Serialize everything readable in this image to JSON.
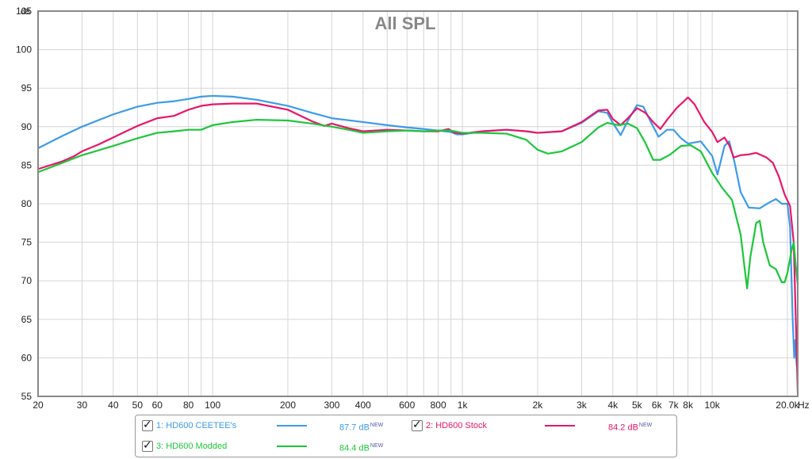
{
  "chart_data": {
    "type": "line",
    "title": "All SPL",
    "y_unit": "dB",
    "x_unit": "Hz",
    "x_scale": "log",
    "xlim": [
      20,
      22000
    ],
    "ylim": [
      55,
      105
    ],
    "grid": true,
    "y_ticks": [
      "55",
      "60",
      "65",
      "70",
      "75",
      "80",
      "85",
      "90",
      "95",
      "100",
      "105"
    ],
    "x_ticks": [
      {
        "v": 20,
        "label": "20"
      },
      {
        "v": 30,
        "label": "30"
      },
      {
        "v": 40,
        "label": "40"
      },
      {
        "v": 50,
        "label": "50"
      },
      {
        "v": 60,
        "label": "60"
      },
      {
        "v": 80,
        "label": "80"
      },
      {
        "v": 100,
        "label": "100"
      },
      {
        "v": 200,
        "label": "200"
      },
      {
        "v": 300,
        "label": "300"
      },
      {
        "v": 400,
        "label": "400"
      },
      {
        "v": 600,
        "label": "600"
      },
      {
        "v": 800,
        "label": "800"
      },
      {
        "v": 1000,
        "label": "1k"
      },
      {
        "v": 2000,
        "label": "2k"
      },
      {
        "v": 3000,
        "label": "3k"
      },
      {
        "v": 4000,
        "label": "4k"
      },
      {
        "v": 5000,
        "label": "5k"
      },
      {
        "v": 6000,
        "label": "6k"
      },
      {
        "v": 7000,
        "label": "7k"
      },
      {
        "v": 8000,
        "label": "8k"
      },
      {
        "v": 10000,
        "label": "10k"
      },
      {
        "v": 20000,
        "label": "20.0k"
      }
    ],
    "minor_grid": [
      90,
      200,
      300,
      400,
      500,
      600,
      700,
      800,
      900,
      2000,
      3000,
      4000,
      5000,
      6000,
      7000,
      8000,
      9000,
      20000
    ],
    "series": [
      {
        "name": "1: HD600 CEETEE's",
        "color": "#3d9be9",
        "points": [
          [
            20,
            87.2
          ],
          [
            25,
            88.8
          ],
          [
            30,
            90.0
          ],
          [
            40,
            91.6
          ],
          [
            50,
            92.6
          ],
          [
            60,
            93.1
          ],
          [
            70,
            93.3
          ],
          [
            80,
            93.6
          ],
          [
            90,
            93.9
          ],
          [
            100,
            94.0
          ],
          [
            120,
            93.9
          ],
          [
            150,
            93.5
          ],
          [
            200,
            92.7
          ],
          [
            250,
            91.8
          ],
          [
            300,
            91.1
          ],
          [
            400,
            90.6
          ],
          [
            500,
            90.2
          ],
          [
            600,
            89.9
          ],
          [
            700,
            89.7
          ],
          [
            800,
            89.5
          ],
          [
            900,
            89.3
          ],
          [
            950,
            89.0
          ],
          [
            1000,
            89.0
          ],
          [
            1200,
            89.4
          ],
          [
            1500,
            89.6
          ],
          [
            1800,
            89.4
          ],
          [
            2000,
            89.2
          ],
          [
            2500,
            89.4
          ],
          [
            3000,
            90.5
          ],
          [
            3500,
            92.0
          ],
          [
            3800,
            91.8
          ],
          [
            4000,
            90.5
          ],
          [
            4300,
            88.9
          ],
          [
            4600,
            90.8
          ],
          [
            5000,
            92.8
          ],
          [
            5300,
            92.6
          ],
          [
            5700,
            90.5
          ],
          [
            6100,
            88.7
          ],
          [
            6600,
            89.6
          ],
          [
            7000,
            89.6
          ],
          [
            7500,
            88.5
          ],
          [
            8000,
            87.8
          ],
          [
            9000,
            88.1
          ],
          [
            10000,
            86.2
          ],
          [
            10500,
            83.8
          ],
          [
            11200,
            87.5
          ],
          [
            11700,
            88.1
          ],
          [
            12300,
            85.3
          ],
          [
            13000,
            81.5
          ],
          [
            14000,
            79.5
          ],
          [
            15500,
            79.4
          ],
          [
            17000,
            80.2
          ],
          [
            18000,
            80.6
          ],
          [
            19000,
            80.0
          ],
          [
            20000,
            80.0
          ],
          [
            20500,
            77.0
          ],
          [
            21000,
            65.0
          ],
          [
            21300,
            60.0
          ],
          [
            21500,
            62.3
          ],
          [
            21800,
            59.0
          ],
          [
            22000,
            58.5
          ]
        ]
      },
      {
        "name": "2: HD600 Stock",
        "color": "#e8166a",
        "points": [
          [
            20,
            84.5
          ],
          [
            25,
            85.5
          ],
          [
            28,
            86.2
          ],
          [
            30,
            86.8
          ],
          [
            35,
            87.7
          ],
          [
            40,
            88.6
          ],
          [
            45,
            89.4
          ],
          [
            50,
            90.1
          ],
          [
            60,
            91.1
          ],
          [
            70,
            91.4
          ],
          [
            80,
            92.2
          ],
          [
            90,
            92.7
          ],
          [
            100,
            92.9
          ],
          [
            120,
            93.0
          ],
          [
            150,
            93.0
          ],
          [
            200,
            92.2
          ],
          [
            250,
            90.7
          ],
          [
            280,
            90.1
          ],
          [
            300,
            90.4
          ],
          [
            350,
            89.8
          ],
          [
            400,
            89.4
          ],
          [
            500,
            89.6
          ],
          [
            600,
            89.5
          ],
          [
            700,
            89.4
          ],
          [
            800,
            89.4
          ],
          [
            880,
            89.7
          ],
          [
            930,
            89.2
          ],
          [
            1000,
            89.1
          ],
          [
            1200,
            89.4
          ],
          [
            1500,
            89.6
          ],
          [
            1800,
            89.4
          ],
          [
            2000,
            89.2
          ],
          [
            2500,
            89.4
          ],
          [
            3000,
            90.6
          ],
          [
            3500,
            92.1
          ],
          [
            3800,
            92.2
          ],
          [
            4000,
            91.0
          ],
          [
            4300,
            90.2
          ],
          [
            4600,
            91.1
          ],
          [
            5000,
            92.4
          ],
          [
            5400,
            91.8
          ],
          [
            5800,
            90.6
          ],
          [
            6200,
            89.7
          ],
          [
            6600,
            90.9
          ],
          [
            7200,
            92.4
          ],
          [
            8000,
            93.8
          ],
          [
            8500,
            92.9
          ],
          [
            9300,
            90.6
          ],
          [
            10000,
            89.3
          ],
          [
            10500,
            88.0
          ],
          [
            11200,
            88.6
          ],
          [
            11700,
            87.6
          ],
          [
            12200,
            86.0
          ],
          [
            13000,
            86.3
          ],
          [
            14000,
            86.4
          ],
          [
            15000,
            86.6
          ],
          [
            16500,
            86.0
          ],
          [
            17500,
            85.3
          ],
          [
            18500,
            83.5
          ],
          [
            19500,
            81.2
          ],
          [
            20500,
            79.7
          ],
          [
            21200,
            75.0
          ],
          [
            22000,
            55.5
          ]
        ]
      },
      {
        "name": "3: HD600 Modded",
        "color": "#1cc63b",
        "points": [
          [
            20,
            84.1
          ],
          [
            25,
            85.3
          ],
          [
            30,
            86.3
          ],
          [
            40,
            87.5
          ],
          [
            50,
            88.5
          ],
          [
            60,
            89.2
          ],
          [
            70,
            89.4
          ],
          [
            80,
            89.6
          ],
          [
            90,
            89.6
          ],
          [
            100,
            90.2
          ],
          [
            120,
            90.6
          ],
          [
            150,
            90.9
          ],
          [
            200,
            90.8
          ],
          [
            250,
            90.4
          ],
          [
            300,
            90.0
          ],
          [
            350,
            89.6
          ],
          [
            400,
            89.2
          ],
          [
            500,
            89.4
          ],
          [
            600,
            89.5
          ],
          [
            700,
            89.4
          ],
          [
            800,
            89.5
          ],
          [
            900,
            89.5
          ],
          [
            1000,
            89.2
          ],
          [
            1200,
            89.2
          ],
          [
            1500,
            89.1
          ],
          [
            1800,
            88.3
          ],
          [
            2000,
            87.0
          ],
          [
            2200,
            86.5
          ],
          [
            2500,
            86.8
          ],
          [
            3000,
            88.0
          ],
          [
            3500,
            89.9
          ],
          [
            3800,
            90.5
          ],
          [
            4200,
            90.2
          ],
          [
            4600,
            90.4
          ],
          [
            5000,
            89.8
          ],
          [
            5400,
            87.9
          ],
          [
            5800,
            85.7
          ],
          [
            6200,
            85.7
          ],
          [
            6800,
            86.4
          ],
          [
            7500,
            87.5
          ],
          [
            8200,
            87.6
          ],
          [
            9000,
            86.8
          ],
          [
            10000,
            84.0
          ],
          [
            11000,
            82.0
          ],
          [
            12000,
            80.5
          ],
          [
            13000,
            76.0
          ],
          [
            13500,
            71.5
          ],
          [
            13800,
            69.0
          ],
          [
            14200,
            73.0
          ],
          [
            15000,
            77.5
          ],
          [
            15500,
            77.8
          ],
          [
            16000,
            75.0
          ],
          [
            17000,
            72.0
          ],
          [
            18000,
            71.5
          ],
          [
            19000,
            69.8
          ],
          [
            19500,
            69.8
          ],
          [
            20000,
            71.0
          ],
          [
            20800,
            74.0
          ],
          [
            21200,
            75.0
          ],
          [
            21600,
            72.0
          ],
          [
            22000,
            69.5
          ]
        ]
      }
    ]
  },
  "legend": [
    {
      "label": "1: HD600 CEETEE's",
      "value": "87.7 dB",
      "badge": "NEW",
      "color": "#3d9be9"
    },
    {
      "label": "2: HD600 Stock",
      "value": "84.2 dB",
      "badge": "NEW",
      "color": "#e8166a"
    },
    {
      "label": "3: HD600 Modded",
      "value": "84.4 dB",
      "badge": "NEW",
      "color": "#1cc63b"
    }
  ]
}
